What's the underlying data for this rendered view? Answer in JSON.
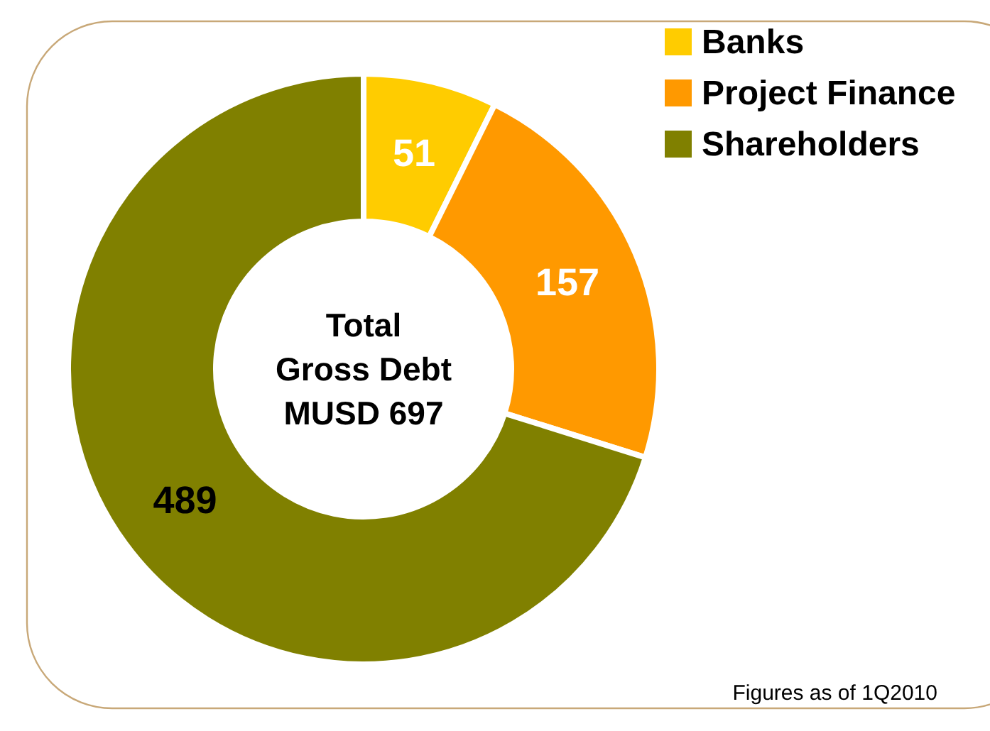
{
  "chart_data": {
    "type": "donut",
    "title": "Total Gross Debt",
    "subtitle": "MUSD 697",
    "categories": [
      "Banks",
      "Project Finance",
      "Shareholders"
    ],
    "values": [
      51,
      157,
      489
    ],
    "colors": [
      "#ffcc00",
      "#ff9900",
      "#808000"
    ],
    "data_labels": true,
    "legend": "top right",
    "annotations": [
      "Figures as of 1Q2010"
    ]
  }
}
